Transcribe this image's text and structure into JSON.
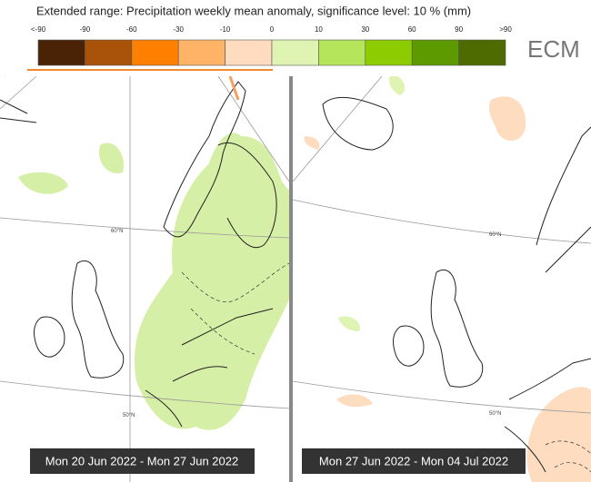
{
  "header": {
    "title": "Extended range: Precipitation weekly mean anomaly, significance level: 10 % (mm)",
    "logo": "ECM"
  },
  "legend": {
    "labels": [
      "<-90",
      "-90",
      "-60",
      "-30",
      "-10",
      "0",
      "10",
      "30",
      "60",
      "90",
      ">90"
    ],
    "colors": [
      "#4a2306",
      "#a8520a",
      "#ff7f00",
      "#ffb366",
      "#ffdcbf",
      "#dff3b2",
      "#b5e55a",
      "#8ccc00",
      "#5c9a00",
      "#4d6b00"
    ]
  },
  "panels": [
    {
      "label": "Mon 20 Jun 2022 - Mon 27 Jun 2022",
      "grid_labels": [
        "60°N",
        "50°N"
      ]
    },
    {
      "label": "Mon 27 Jun 2022 - Mon 04 Jul 2022",
      "grid_labels": [
        "60°N",
        "50°N"
      ]
    }
  ]
}
